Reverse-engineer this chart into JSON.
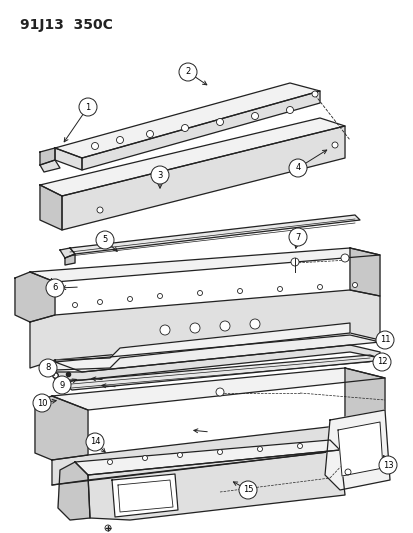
{
  "title": "91J13  350C",
  "bg_color": "#ffffff",
  "line_color": "#222222",
  "face_color_light": "#f2f2f2",
  "face_color_mid": "#e0e0e0",
  "face_color_dark": "#c8c8c8"
}
